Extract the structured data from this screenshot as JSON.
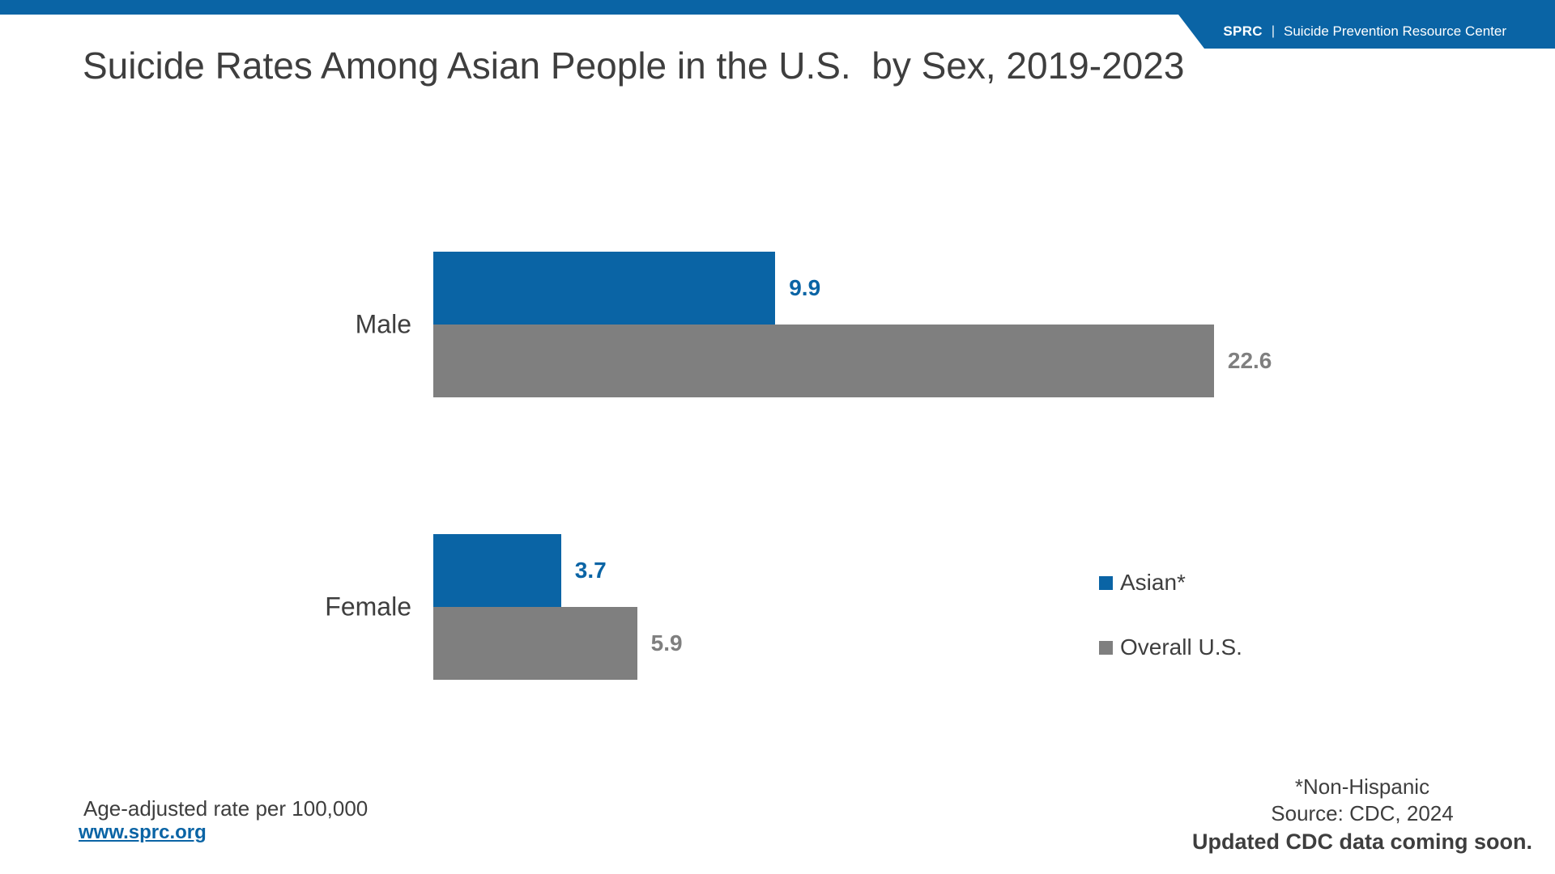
{
  "header": {
    "brand_abbr": "SPRC",
    "brand_separator": "|",
    "brand_name": "Suicide Prevention Resource Center"
  },
  "title": "Suicide Rates Among Asian People in the U.S.  by Sex, 2019-2023",
  "chart_data": {
    "type": "bar",
    "orientation": "horizontal",
    "title": "Suicide Rates Among Asian People in the U.S. by Sex, 2019-2023",
    "categories": [
      "Male",
      "Female"
    ],
    "series": [
      {
        "name": "Asian*",
        "color": "#0A64A5",
        "values": [
          9.9,
          3.7
        ]
      },
      {
        "name": "Overall U.S.",
        "color": "#7F7F7F",
        "values": [
          22.6,
          5.9
        ]
      }
    ],
    "value_labels": true,
    "xlim": [
      0,
      24
    ],
    "grid": false,
    "legend_position": "right",
    "units": "Age-adjusted rate per 100,000"
  },
  "footer": {
    "note": "Age-adjusted rate per 100,000",
    "link": "www.sprc.org",
    "footnote": "*Non-Hispanic",
    "source": "Source: CDC, 2024",
    "update_notice": "Updated CDC data coming soon."
  },
  "colors": {
    "brand_blue": "#0A64A5",
    "bar_gray": "#7F7F7F",
    "text_dark": "#3E3E3E"
  }
}
